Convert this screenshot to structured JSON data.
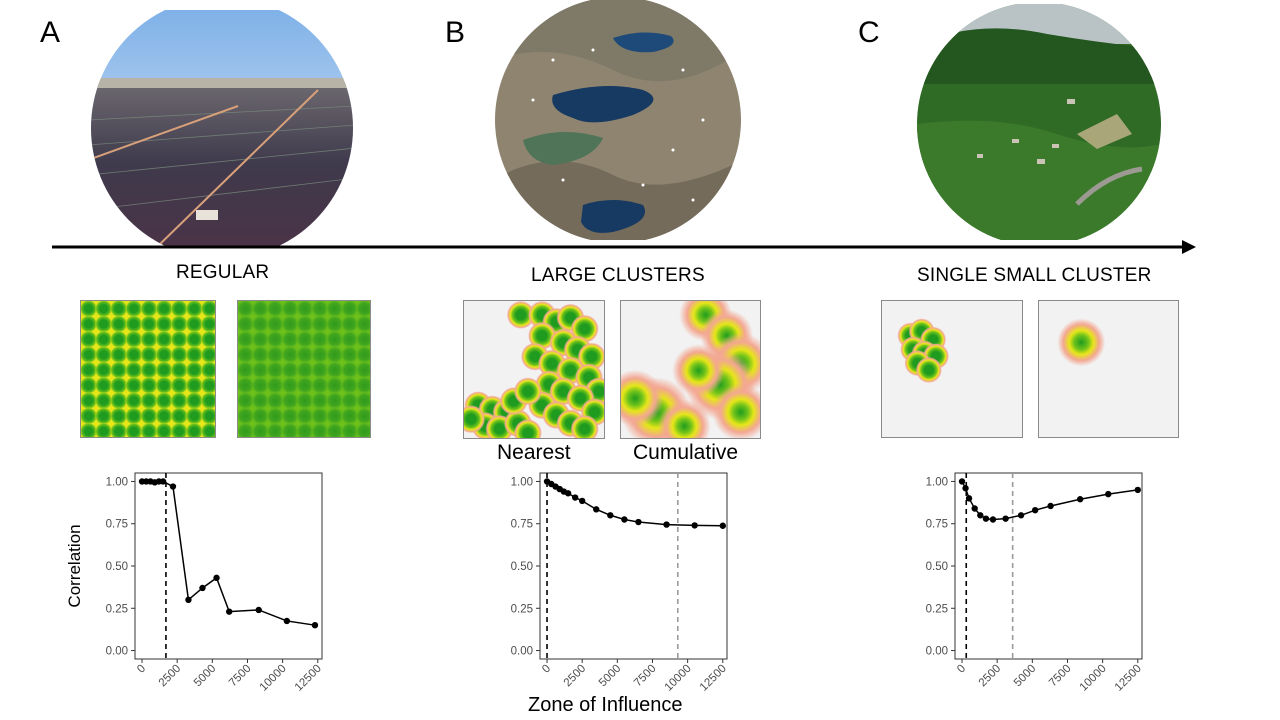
{
  "panels": [
    {
      "letter": "A",
      "caption": "REGULAR",
      "map_labels": [
        "",
        ""
      ]
    },
    {
      "letter": "B",
      "caption": "LARGE CLUSTERS",
      "map_labels": [
        "Nearest",
        "Cumulative"
      ]
    },
    {
      "letter": "C",
      "caption": "SINGLE SMALL CLUSTER",
      "map_labels": [
        "",
        ""
      ]
    }
  ],
  "colors": {
    "heat_core": "#1f9c1f",
    "heat_mid": "#6fc21a",
    "heat_yellow": "#e6e619",
    "heat_edge": "#f3a792",
    "map_bg": "#f2f2f2",
    "arrow": "#000000",
    "dashed_black": "#000000",
    "dashed_grey": "#9a9a9a"
  },
  "photos": [
    {
      "subject": "solar-farm-aerial"
    },
    {
      "subject": "wind-farm-lakes-aerial"
    },
    {
      "subject": "forest-village-aerial"
    }
  ],
  "chart_data": [
    {
      "type": "line",
      "title": "",
      "xlabel": "",
      "ylabel": "Correlation",
      "xlim": [
        -500,
        12800
      ],
      "ylim": [
        -0.05,
        1.05
      ],
      "x_ticks": [
        0,
        2500,
        5000,
        7500,
        10000,
        12500
      ],
      "x_tick_labels": [
        "0",
        "2500",
        "5000",
        "7500",
        "10000",
        "12500"
      ],
      "y_ticks": [
        0,
        0.25,
        0.5,
        0.75,
        1
      ],
      "y_tick_labels": [
        "0.00",
        "0.25",
        "0.50",
        "0.75",
        "1.00"
      ],
      "vlines": [
        {
          "x": 1700,
          "style": "black"
        }
      ],
      "series": [
        {
          "x": [
            0,
            300,
            600,
            900,
            1200,
            1500,
            2200,
            3300,
            4300,
            5300,
            6200,
            8300,
            10300,
            12300
          ],
          "y": [
            1.0,
            1.0,
            1.0,
            0.995,
            1.0,
            1.0,
            0.97,
            0.3,
            0.37,
            0.43,
            0.23,
            0.24,
            0.175,
            0.15
          ]
        }
      ]
    },
    {
      "type": "line",
      "title": "",
      "xlabel": "Zone of Influence",
      "ylabel": "",
      "xlim": [
        -500,
        12800
      ],
      "ylim": [
        -0.05,
        1.05
      ],
      "x_ticks": [
        0,
        2500,
        5000,
        7500,
        10000,
        12500
      ],
      "x_tick_labels": [
        "0",
        "2500",
        "5000",
        "7500",
        "10000",
        "12500"
      ],
      "y_ticks": [
        0,
        0.25,
        0.5,
        0.75,
        1
      ],
      "y_tick_labels": [
        "0.00",
        "0.25",
        "0.50",
        "0.75",
        "1.00"
      ],
      "vlines": [
        {
          "x": 0,
          "style": "black"
        },
        {
          "x": 9300,
          "style": "grey"
        }
      ],
      "series": [
        {
          "x": [
            0,
            300,
            600,
            900,
            1200,
            1500,
            2000,
            2500,
            3500,
            4500,
            5500,
            6500,
            8500,
            10500,
            12500
          ],
          "y": [
            1.0,
            0.985,
            0.97,
            0.955,
            0.94,
            0.93,
            0.905,
            0.885,
            0.835,
            0.8,
            0.775,
            0.76,
            0.745,
            0.74,
            0.738
          ]
        }
      ]
    },
    {
      "type": "line",
      "title": "",
      "xlabel": "",
      "ylabel": "",
      "xlim": [
        -500,
        12800
      ],
      "ylim": [
        -0.05,
        1.05
      ],
      "x_ticks": [
        0,
        2500,
        5000,
        7500,
        10000,
        12500
      ],
      "x_tick_labels": [
        "0",
        "2500",
        "5000",
        "7500",
        "10000",
        "12500"
      ],
      "y_ticks": [
        0,
        0.25,
        0.5,
        0.75,
        1
      ],
      "y_tick_labels": [
        "0.00",
        "0.25",
        "0.50",
        "0.75",
        "1.00"
      ],
      "vlines": [
        {
          "x": 300,
          "style": "black"
        },
        {
          "x": 3600,
          "style": "grey"
        }
      ],
      "series": [
        {
          "x": [
            0,
            250,
            500,
            900,
            1300,
            1700,
            2200,
            3100,
            4200,
            5200,
            6300,
            8400,
            10400,
            12500
          ],
          "y": [
            1.0,
            0.96,
            0.9,
            0.84,
            0.8,
            0.78,
            0.775,
            0.78,
            0.8,
            0.83,
            0.855,
            0.895,
            0.925,
            0.95
          ]
        }
      ]
    }
  ]
}
